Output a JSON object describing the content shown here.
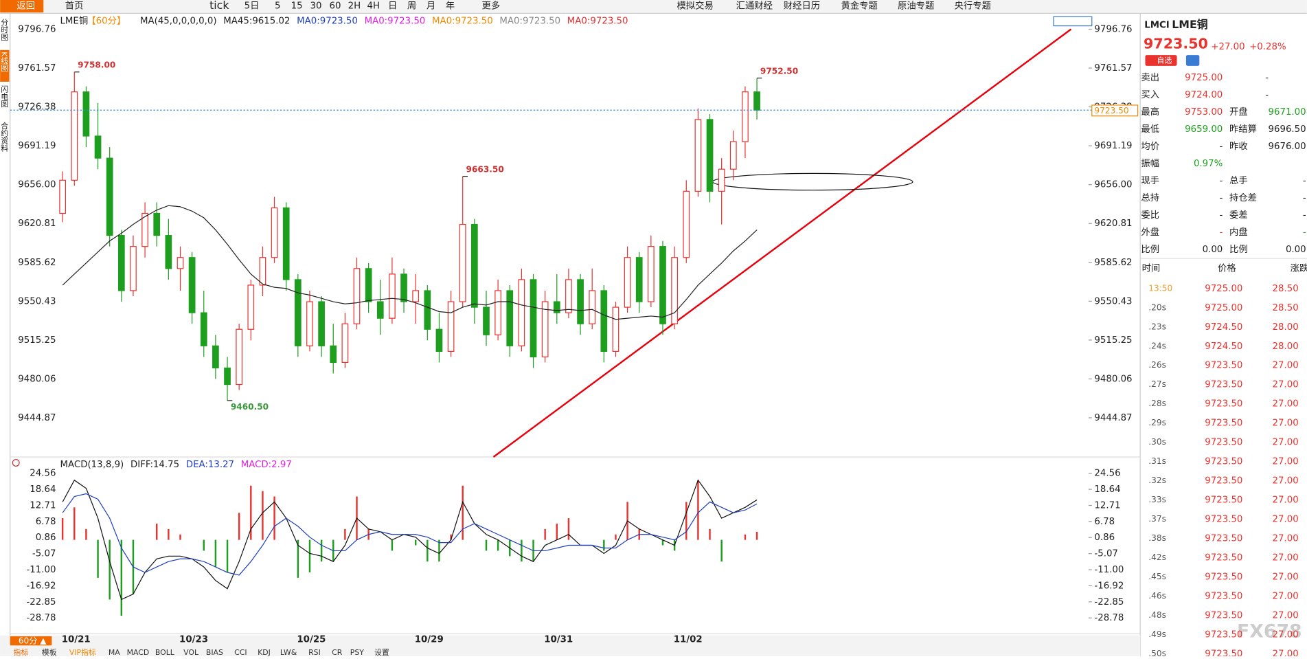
{
  "toolbar": {
    "back": "返回",
    "home": "首页",
    "periods": [
      "tick",
      "5日",
      "5",
      "15",
      "30",
      "60",
      "2H",
      "4H",
      "日",
      "周",
      "月",
      "年"
    ],
    "more": "更多",
    "links": [
      "模拟交易",
      "汇通财经",
      "财经日历",
      "黄金专题",
      "原油专题",
      "央行专题"
    ]
  },
  "side_tabs": [
    "分时图",
    "K线图",
    "闪电图",
    "合约资料"
  ],
  "chart_data": {
    "type": "candlestick",
    "title": "LME铜",
    "period": "【60分】",
    "legend": [
      {
        "text": "MA(45,0,0,0,0,0)",
        "color": "#222222"
      },
      {
        "text": "MA45:9615.02",
        "color": "#222222"
      },
      {
        "text": "MA0:9723.50",
        "color": "#1f3fbf"
      },
      {
        "text": "MA0:9723.50",
        "color": "#e020e0"
      },
      {
        "text": "MA0:9723.50",
        "color": "#f08a00"
      },
      {
        "text": "MA0:9723.50",
        "color": "#888888"
      },
      {
        "text": "MA0:9723.50",
        "color": "#e03030"
      }
    ],
    "categories": [
      null,
      "10/21",
      null,
      null,
      null,
      null,
      null,
      null,
      null,
      null,
      null,
      "10/23",
      null,
      null,
      null,
      null,
      null,
      null,
      null,
      null,
      null,
      "10/25",
      null,
      null,
      null,
      null,
      null,
      null,
      null,
      null,
      null,
      "10/29",
      null,
      null,
      null,
      null,
      null,
      null,
      null,
      null,
      null,
      null,
      "10/31",
      null,
      null,
      null,
      null,
      null,
      null,
      null,
      null,
      null,
      null,
      "11/02",
      null,
      null,
      null,
      null,
      null,
      null
    ],
    "ohlc": [
      [
        9630,
        9668,
        9622,
        9660
      ],
      [
        9660,
        9758,
        9655,
        9740
      ],
      [
        9740,
        9745,
        9690,
        9700
      ],
      [
        9700,
        9730,
        9670,
        9680
      ],
      [
        9680,
        9690,
        9600,
        9610
      ],
      [
        9610,
        9615,
        9550,
        9560
      ],
      [
        9560,
        9610,
        9555,
        9600
      ],
      [
        9600,
        9640,
        9590,
        9630
      ],
      [
        9630,
        9640,
        9600,
        9610
      ],
      [
        9610,
        9625,
        9570,
        9580
      ],
      [
        9580,
        9600,
        9560,
        9590
      ],
      [
        9590,
        9595,
        9530,
        9540
      ],
      [
        9540,
        9560,
        9500,
        9510
      ],
      [
        9510,
        9520,
        9480,
        9490
      ],
      [
        9490,
        9500,
        9460.5,
        9475
      ],
      [
        9475,
        9530,
        9470,
        9525
      ],
      [
        9525,
        9570,
        9515,
        9565
      ],
      [
        9565,
        9600,
        9555,
        9590
      ],
      [
        9590,
        9645,
        9585,
        9635
      ],
      [
        9635,
        9640,
        9560,
        9570
      ],
      [
        9570,
        9575,
        9500,
        9510
      ],
      [
        9510,
        9560,
        9505,
        9550
      ],
      [
        9550,
        9555,
        9500,
        9510
      ],
      [
        9510,
        9530,
        9485,
        9495
      ],
      [
        9495,
        9540,
        9490,
        9530
      ],
      [
        9530,
        9590,
        9525,
        9580
      ],
      [
        9580,
        9585,
        9540,
        9550
      ],
      [
        9550,
        9570,
        9520,
        9535
      ],
      [
        9535,
        9590,
        9530,
        9575
      ],
      [
        9575,
        9580,
        9540,
        9550
      ],
      [
        9550,
        9575,
        9530,
        9560
      ],
      [
        9560,
        9565,
        9515,
        9525
      ],
      [
        9525,
        9540,
        9495,
        9505
      ],
      [
        9505,
        9560,
        9500,
        9550
      ],
      [
        9550,
        9663.5,
        9545,
        9620
      ],
      [
        9620,
        9625,
        9530,
        9545
      ],
      [
        9545,
        9560,
        9510,
        9520
      ],
      [
        9520,
        9570,
        9515,
        9560
      ],
      [
        9560,
        9565,
        9500,
        9510
      ],
      [
        9510,
        9580,
        9505,
        9570
      ],
      [
        9570,
        9575,
        9490,
        9500
      ],
      [
        9500,
        9560,
        9495,
        9550
      ],
      [
        9550,
        9575,
        9530,
        9540
      ],
      [
        9540,
        9580,
        9535,
        9570
      ],
      [
        9570,
        9575,
        9520,
        9530
      ],
      [
        9530,
        9580,
        9525,
        9560
      ],
      [
        9560,
        9565,
        9495,
        9505
      ],
      [
        9505,
        9550,
        9500,
        9545
      ],
      [
        9545,
        9600,
        9540,
        9590
      ],
      [
        9590,
        9595,
        9540,
        9550
      ],
      [
        9550,
        9610,
        9545,
        9600
      ],
      [
        9600,
        9605,
        9520,
        9530
      ],
      [
        9530,
        9600,
        9525,
        9590
      ],
      [
        9590,
        9660,
        9585,
        9650
      ],
      [
        9650,
        9725,
        9645,
        9715
      ],
      [
        9715,
        9720,
        9640,
        9650
      ],
      [
        9650,
        9680,
        9620,
        9670
      ],
      [
        9670,
        9705,
        9660,
        9695
      ],
      [
        9695,
        9745,
        9680,
        9740
      ],
      [
        9740,
        9752.5,
        9715,
        9723.5
      ]
    ],
    "ma45": [
      9565,
      9575,
      9585,
      9595,
      9605,
      9612,
      9620,
      9627,
      9633,
      9637,
      9636,
      9632,
      9626,
      9615,
      9602,
      9588,
      9575,
      9566,
      9563,
      9562,
      9558,
      9556,
      9553,
      9550,
      9548,
      9549,
      9551,
      9552,
      9553,
      9552,
      9549,
      9545,
      9541,
      9540,
      9545,
      9548,
      9547,
      9550,
      9550,
      9547,
      9545,
      9543,
      9542,
      9543,
      9542,
      9543,
      9538,
      9534,
      9535,
      9536,
      9537,
      9536,
      9540,
      9552,
      9565,
      9575,
      9585,
      9596,
      9605,
      9615
    ],
    "extreme_labels": [
      "9758.00",
      "9663.50",
      "9752.50",
      "9460.50"
    ],
    "last_price": {
      "value": 9723.5,
      "label": "9723.50"
    },
    "ylim": [
      9409.4,
      9808.1
    ],
    "yticks": [
      9796.76,
      9761.57,
      9726.38,
      9691.19,
      {
        "value": 9656,
        "label": "9656.00"
      },
      9620.81,
      9585.62,
      9550.43,
      9515.25,
      9480.06,
      9444.87
    ],
    "macd": {
      "legend": [
        {
          "text": "MACD(13,8,9)",
          "color": "#222222"
        },
        {
          "text": "DIFF:14.75",
          "color": "#222222"
        },
        {
          "text": "DEA:13.27",
          "color": "#1f3fbf"
        },
        {
          "text": "MACD:2.97",
          "color": "#e020e0"
        }
      ],
      "diff": [
        14,
        22,
        19,
        8,
        -8,
        -22,
        -20,
        -12,
        -7,
        -6,
        -6,
        -7,
        -10,
        -15,
        -18,
        -8,
        4,
        10,
        14,
        8,
        -2,
        -5,
        -6,
        -8,
        -2,
        8,
        4,
        3,
        0,
        2,
        1,
        -3,
        -5,
        0,
        14,
        6,
        2,
        0,
        -3,
        -6,
        -8,
        -2,
        0,
        2,
        -2,
        -2,
        -5,
        -2,
        7,
        4,
        2,
        0,
        -2,
        10,
        22,
        16,
        8,
        10,
        12,
        14.75
      ],
      "dea": [
        10,
        16,
        17,
        15,
        8,
        -3,
        -10,
        -12,
        -10,
        -8,
        -7,
        -7,
        -8,
        -10,
        -12,
        -13,
        -8,
        -2,
        5,
        8,
        5,
        1,
        -2,
        -4,
        -4,
        0,
        2,
        3,
        2,
        2,
        2,
        1,
        -1,
        -1,
        4,
        6,
        4,
        2,
        0,
        -2,
        -4,
        -4,
        -3,
        -2,
        -2,
        -2,
        -3,
        -3,
        0,
        2,
        2,
        1,
        0,
        3,
        10,
        14,
        12,
        10,
        11,
        13.27
      ],
      "hist": [
        8,
        12,
        4,
        -14,
        -22,
        -28,
        -20,
        0,
        6,
        4,
        2,
        0,
        -4,
        -10,
        -12,
        10,
        20,
        18,
        16,
        0,
        -14,
        -12,
        -8,
        -8,
        4,
        16,
        4,
        0,
        -4,
        0,
        -2,
        -8,
        -8,
        2,
        20,
        0,
        -4,
        -4,
        -6,
        -8,
        -8,
        4,
        6,
        8,
        0,
        0,
        -4,
        2,
        14,
        4,
        0,
        -2,
        -4,
        14,
        22,
        4,
        -8,
        0,
        2,
        2.97
      ],
      "ylim": [
        -34,
        27.5
      ],
      "yticks": [
        24.56,
        18.64,
        12.71,
        6.78,
        0.86,
        -5.07,
        {
          "value": -11,
          "label": "-11.00"
        },
        -16.92,
        -22.85,
        -28.78
      ]
    }
  },
  "quote": {
    "symbol": "LMCI",
    "name": "LME铜",
    "price": "9723.50",
    "change": "+27.00",
    "change_pct": "+0.28%",
    "watch": "自选",
    "rows": [
      {
        "l1": "卖出",
        "v1": "9725.00",
        "c1": "#e8332f",
        "v2": "-"
      },
      {
        "l1": "买入",
        "v1": "9724.00",
        "c1": "#e8332f",
        "v2": "-"
      },
      {
        "l1": "最高",
        "v1": "9753.00",
        "c1": "#e8332f",
        "l2": "开盘",
        "v2": "9671.00",
        "c2": "#1e9e1e"
      },
      {
        "l1": "最低",
        "v1": "9659.00",
        "c1": "#1e9e1e",
        "l2": "昨结算",
        "v2": "9696.50"
      },
      {
        "l1": "均价",
        "v1": "-",
        "l2": "昨收",
        "v2": "9676.00"
      },
      {
        "l1": "振幅",
        "v1": "0.97%",
        "c1": "#1e9e1e"
      },
      {
        "l1": "现手",
        "v1": "-",
        "l2": "总手",
        "v2": "-"
      },
      {
        "l1": "总持",
        "v1": "-",
        "l2": "持仓差",
        "v2": "-"
      },
      {
        "l1": "委比",
        "v1": "-",
        "l2": "委差",
        "v2": "-"
      },
      {
        "l1": "外盘",
        "v1": "-",
        "c1": "#e8332f",
        "l2": "内盘",
        "v2": "-",
        "c2": "#1e9e1e"
      },
      {
        "l1": "比例",
        "v1": "0.00",
        "l2": "比例",
        "v2": "0.00"
      }
    ]
  },
  "trades": {
    "headers": [
      "时间",
      "价格",
      "涨跌"
    ],
    "rows": [
      [
        "13:50",
        "9725.00",
        "28.50"
      ],
      [
        ".20s",
        "9725.00",
        "28.50"
      ],
      [
        ".23s",
        "9724.50",
        "28.00"
      ],
      [
        ".24s",
        "9724.50",
        "28.00"
      ],
      [
        ".26s",
        "9723.50",
        "27.00"
      ],
      [
        ".27s",
        "9723.50",
        "27.00"
      ],
      [
        ".28s",
        "9723.50",
        "27.00"
      ],
      [
        ".29s",
        "9723.50",
        "27.00"
      ],
      [
        ".30s",
        "9723.50",
        "27.00"
      ],
      [
        ".31s",
        "9723.50",
        "27.00"
      ],
      [
        ".32s",
        "9723.50",
        "27.00"
      ],
      [
        ".33s",
        "9723.50",
        "27.00"
      ],
      [
        ".37s",
        "9723.50",
        "27.00"
      ],
      [
        ".38s",
        "9723.50",
        "27.00"
      ],
      [
        ".42s",
        "9723.50",
        "27.00"
      ],
      [
        ".45s",
        "9723.50",
        "27.00"
      ],
      [
        ".46s",
        "9723.50",
        "27.00"
      ],
      [
        ".48s",
        "9723.50",
        "27.00"
      ],
      [
        ".49s",
        "9723.50",
        "27.00"
      ],
      [
        ".50s",
        "9723.50",
        "27.00"
      ]
    ]
  },
  "bottom_bar": {
    "period": "60分 ▲",
    "tabs": [
      "指标",
      "模板",
      "VIP指标",
      "MA",
      "MACD",
      "BOLL",
      "VOL",
      "BIAS",
      "CCI",
      "KDJ",
      "LW&",
      "RSI",
      "CR",
      "PSY",
      "设置"
    ]
  },
  "watermark": "FX678"
}
